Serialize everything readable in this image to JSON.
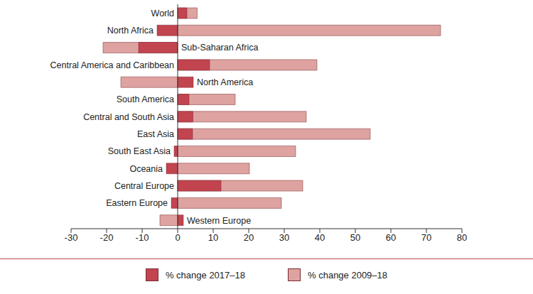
{
  "chart_data": {
    "type": "bar",
    "orientation": "horizontal",
    "categories": [
      "World",
      "North Africa",
      "Sub-Saharan Africa",
      "Central America and Caribbean",
      "North America",
      "South America",
      "Central and South Asia",
      "East Asia",
      "South East Asia",
      "Oceania",
      "Central Europe",
      "Eastern Europe",
      "Western Europe"
    ],
    "series": [
      {
        "name": "% change 2017–18",
        "color": "#c2444f",
        "values": [
          2.6,
          -5.8,
          -11,
          9,
          4.4,
          3.2,
          4.3,
          4.2,
          -1,
          -3.2,
          12.2,
          -1.8,
          1.6
        ]
      },
      {
        "name": "% change 2009–18",
        "color": "#dea3a0",
        "values": [
          5.5,
          74,
          -21,
          39.2,
          -16,
          16.2,
          36.2,
          54.2,
          33.2,
          20.2,
          35.2,
          29.2,
          -5
        ]
      }
    ],
    "xlim": [
      -30,
      80
    ],
    "xticks": [
      -30,
      -20,
      -10,
      0,
      10,
      20,
      30,
      40,
      50,
      60,
      70,
      80
    ],
    "grid": false,
    "legend": "bottom"
  }
}
